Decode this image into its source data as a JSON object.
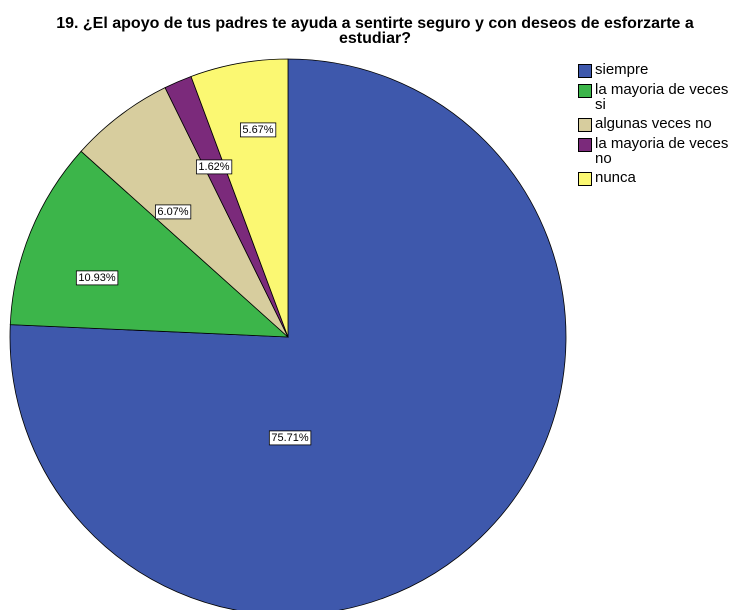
{
  "chart_data": {
    "type": "pie",
    "title": "19. ¿El apoyo de tus padres te ayuda a sentirte seguro y con deseos de esforzarte a estudiar?",
    "categories": [
      "siempre",
      "la mayoria de veces si",
      "algunas veces no",
      "la mayoria de veces no",
      "nunca"
    ],
    "values": [
      75.71,
      10.93,
      6.07,
      1.62,
      5.67
    ],
    "value_labels": [
      "75.71%",
      "10.93%",
      "6.07%",
      "1.62%",
      "5.67%"
    ],
    "colors": [
      "#3e58ac",
      "#3cb54a",
      "#d7cd9e",
      "#7b2a7b",
      "#fbf872"
    ],
    "legend": "right"
  }
}
